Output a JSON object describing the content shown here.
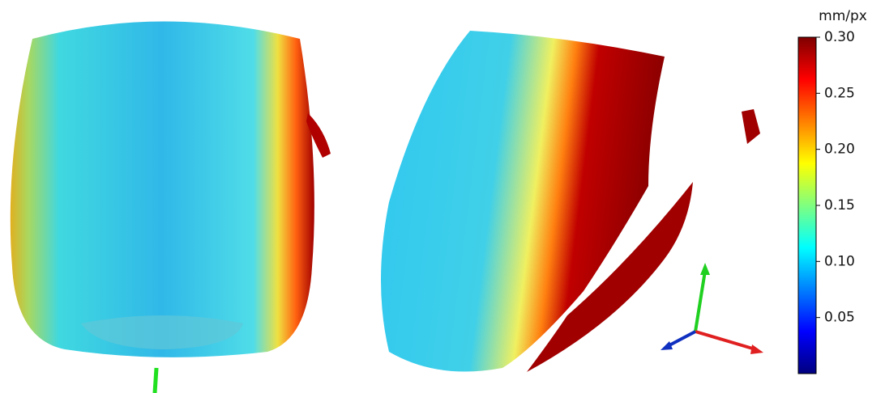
{
  "colorbar": {
    "label": "mm/px",
    "colormap": "jet",
    "lim": [
      0,
      0.3
    ],
    "ticks": [
      {
        "value": 0.3,
        "label": "0.30"
      },
      {
        "value": 0.25,
        "label": "0.25"
      },
      {
        "value": 0.2,
        "label": "0.20"
      },
      {
        "value": 0.15,
        "label": "0.15"
      },
      {
        "value": 0.1,
        "label": "0.10"
      },
      {
        "value": 0.05,
        "label": "0.05"
      }
    ]
  }
}
